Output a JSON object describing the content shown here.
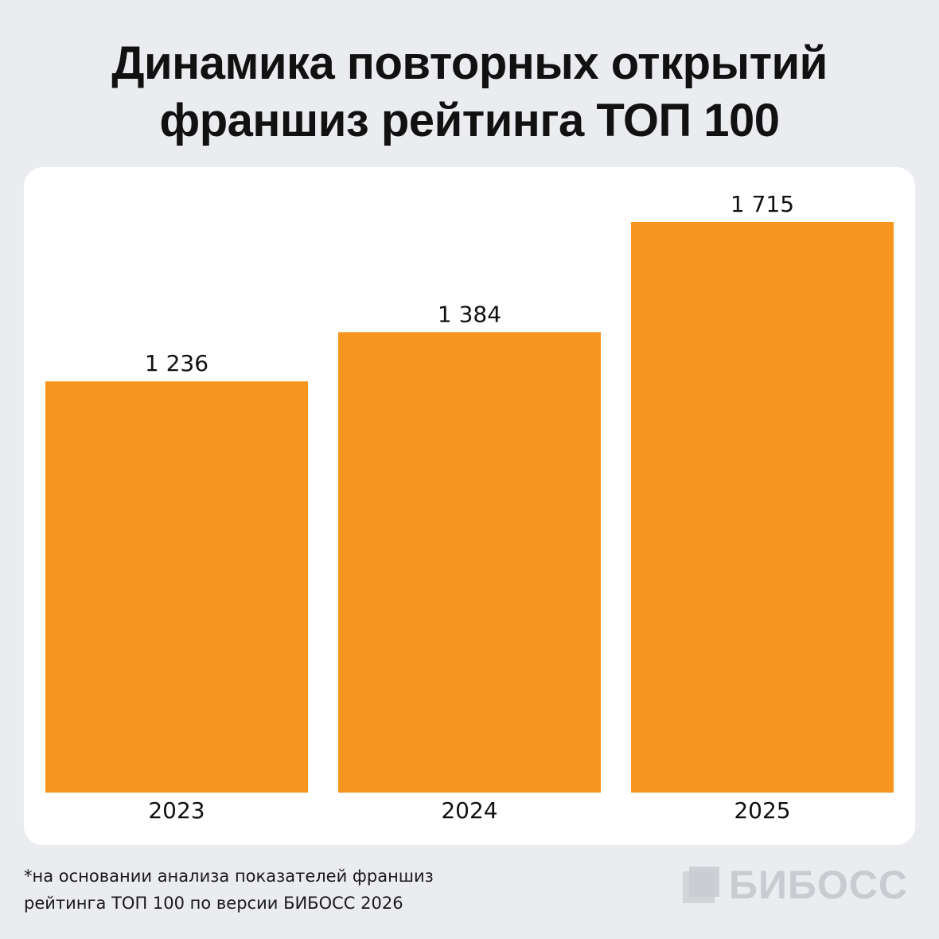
{
  "title": {
    "line1": "Динамика повторных открытий",
    "line2": "франшиз рейтинга ТОП 100"
  },
  "footnote": {
    "line1": "*на основании анализа показателей франшиз",
    "line2": "рейтинга ТОП 100 по версии БИБОСС 2026"
  },
  "logo": {
    "text": "БИБОСС",
    "icon": "biboss-logo-mark-icon"
  },
  "colors": {
    "bar": "#f7961e",
    "background": "#ebecf0",
    "card": "#ffffff",
    "logo": "#c9cbd0"
  },
  "chart_data": {
    "type": "bar",
    "categories": [
      "2023",
      "2024",
      "2025"
    ],
    "values": [
      1236,
      1384,
      1715
    ],
    "value_labels": [
      "1 236",
      "1 384",
      "1 715"
    ],
    "ylim": [
      0,
      1880
    ],
    "grid": false
  }
}
